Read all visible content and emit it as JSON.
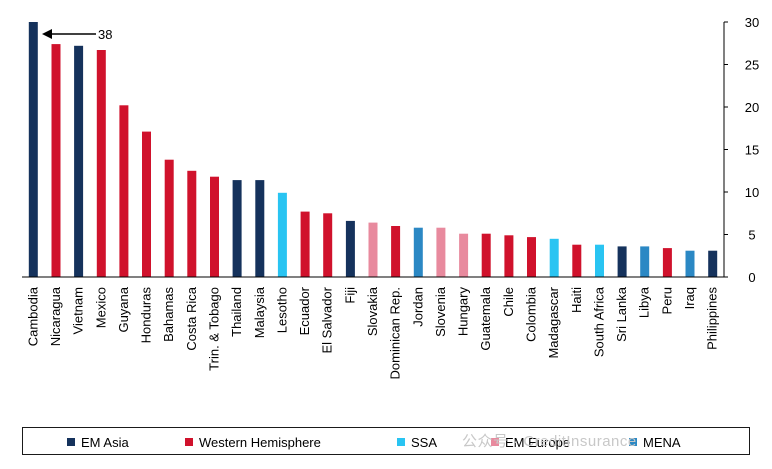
{
  "chart_data": {
    "type": "bar",
    "categories": [
      "Cambodia",
      "Nicaragua",
      "Vietnam",
      "Mexico",
      "Guyana",
      "Honduras",
      "Bahamas",
      "Costa Rica",
      "Trin. & Tobago",
      "Thailand",
      "Malaysia",
      "Lesotho",
      "Ecuador",
      "El Salvador",
      "Fiji",
      "Slovakia",
      "Dominican Rep.",
      "Jordan",
      "Slovenia",
      "Hungary",
      "Guatemala",
      "Chile",
      "Colombia",
      "Madagascar",
      "Haiti",
      "South Africa",
      "Sri Lanka",
      "Libya",
      "Peru",
      "Iraq",
      "Philippines"
    ],
    "values": [
      38,
      27.4,
      27.2,
      26.7,
      20.2,
      17.1,
      13.8,
      12.5,
      11.8,
      11.4,
      11.4,
      9.9,
      7.7,
      7.5,
      6.6,
      6.4,
      6.0,
      5.8,
      5.8,
      5.1,
      5.1,
      4.9,
      4.7,
      4.5,
      3.8,
      3.8,
      3.6,
      3.6,
      3.4,
      3.1,
      3.1
    ],
    "groups": [
      "EM Asia",
      "Western Hemisphere",
      "EM Asia",
      "Western Hemisphere",
      "Western Hemisphere",
      "Western Hemisphere",
      "Western Hemisphere",
      "Western Hemisphere",
      "Western Hemisphere",
      "EM Asia",
      "EM Asia",
      "SSA",
      "Western Hemisphere",
      "Western Hemisphere",
      "EM Asia",
      "EM Europe",
      "Western Hemisphere",
      "MENA",
      "EM Europe",
      "EM Europe",
      "Western Hemisphere",
      "Western Hemisphere",
      "Western Hemisphere",
      "SSA",
      "Western Hemisphere",
      "SSA",
      "EM Asia",
      "MENA",
      "Western Hemisphere",
      "MENA",
      "EM Asia"
    ],
    "ylim": [
      0,
      30
    ],
    "yticks": [
      0,
      5,
      10,
      15,
      20,
      25,
      30
    ],
    "y_axis_side": "right",
    "grid": false,
    "annotation": "38",
    "legend": {
      "placement": "bottom",
      "entries": [
        {
          "name": "EM Asia",
          "color": "#15325c"
        },
        {
          "name": "Western Hemisphere",
          "color": "#d0122c"
        },
        {
          "name": "SSA",
          "color": "#29c4f2"
        },
        {
          "name": "EM Europe",
          "color": "#e88a9e"
        },
        {
          "name": "MENA",
          "color": "#2b88c4"
        }
      ]
    }
  },
  "watermark": "公众号 · CreditInsurance"
}
